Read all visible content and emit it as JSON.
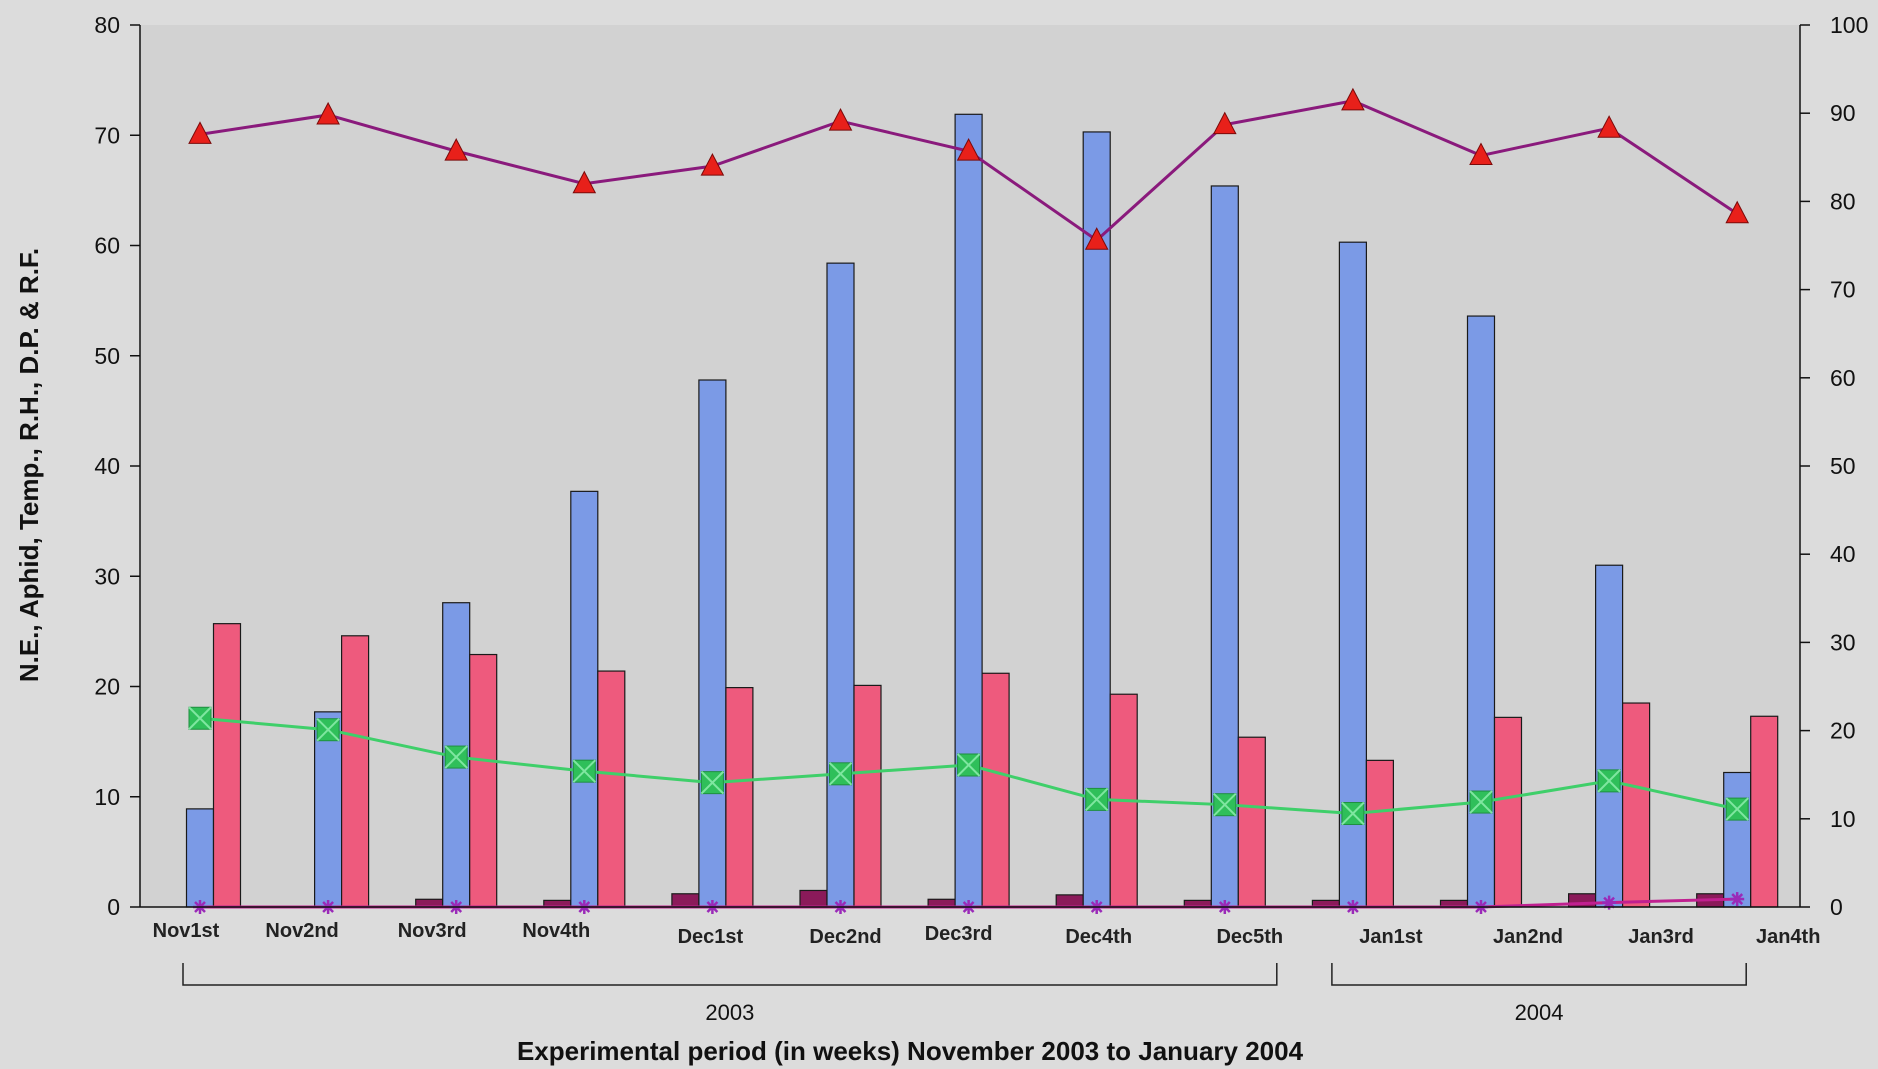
{
  "chart_data": {
    "type": "bar",
    "title": "",
    "xlabel": "Experimental period (in weeks) November 2003 to January 2004",
    "ylabel": "N.E., Aphid, Temp., R.H., D.P. & R.F.",
    "y_left_lim": [
      0,
      80
    ],
    "y_left_ticks": [
      "0",
      "10",
      "20",
      "30",
      "40",
      "50",
      "60",
      "70",
      "80"
    ],
    "y_right_lim": [
      0,
      100
    ],
    "y_right_ticks": [
      "0",
      "10",
      "20",
      "30",
      "40",
      "50",
      "60",
      "70",
      "80",
      "90",
      "100"
    ],
    "categories": [
      "Nov1st",
      "Nov2nd",
      "Nov3rd",
      "Nov4th",
      "Dec1st",
      "Dec2nd",
      "Dec3rd",
      "Dec4th",
      "Dec5th",
      "Jan1st",
      "Jan2nd",
      "Jan3rd",
      "Jan4th"
    ],
    "year_groups": [
      {
        "label": "2003",
        "from": 0,
        "to": 8
      },
      {
        "label": "2004",
        "from": 9,
        "to": 12
      }
    ],
    "grid": false,
    "series": [
      {
        "kind": "bar",
        "axis": "left",
        "color": "#8b1a5a",
        "values": [
          0,
          0,
          0.7,
          0.6,
          1.2,
          1.5,
          0.7,
          1.1,
          0.6,
          0.6,
          0.6,
          1.2,
          1.2
        ]
      },
      {
        "kind": "bar",
        "axis": "left",
        "color": "#7b9ae6",
        "values": [
          8.9,
          17.7,
          27.6,
          37.7,
          47.8,
          58.4,
          71.9,
          70.3,
          65.4,
          60.3,
          53.6,
          31.0,
          12.2
        ]
      },
      {
        "kind": "bar",
        "axis": "left",
        "color": "#ee5a7d",
        "values": [
          25.7,
          24.6,
          22.9,
          21.4,
          19.9,
          20.1,
          21.2,
          19.3,
          15.4,
          13.3,
          17.2,
          18.5,
          17.3
        ]
      },
      {
        "kind": "line",
        "axis": "right",
        "marker": "triangle",
        "color": "#8a1a7c",
        "marker_color": "#e8201a",
        "values": [
          87.6,
          89.8,
          85.7,
          82.0,
          84.0,
          89.1,
          85.7,
          75.6,
          88.7,
          91.4,
          85.2,
          88.3,
          78.6
        ]
      },
      {
        "kind": "line",
        "axis": "right",
        "marker": "square",
        "color": "#3fcf6a",
        "marker_color": "#2fbf5a",
        "values": [
          21.4,
          20.1,
          17.0,
          15.4,
          14.1,
          15.1,
          16.1,
          12.2,
          11.6,
          10.6,
          11.9,
          14.3,
          11.1
        ]
      },
      {
        "kind": "line",
        "axis": "right",
        "marker": "asterisk",
        "color": "#c02090",
        "marker_color": "#9a2ab8",
        "values": [
          0,
          0,
          0,
          0,
          0,
          0,
          0,
          0,
          0,
          0,
          0,
          0.5,
          0.9
        ]
      }
    ]
  }
}
